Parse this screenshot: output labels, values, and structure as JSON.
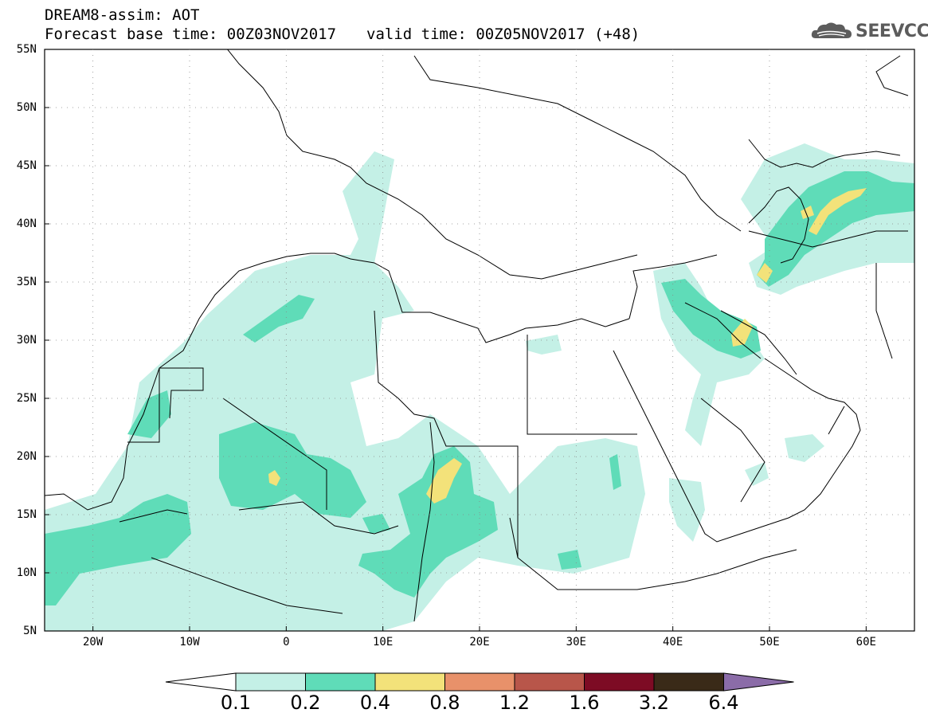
{
  "header": {
    "line1": "DREAM8-assim: AOT",
    "base_time": "Forecast base time: 00Z03NOV2017",
    "valid_time": "valid time: 00Z05NOV2017 (+48)"
  },
  "logo": {
    "text": "SEEVCCC",
    "icon": "cloud-logo-icon"
  },
  "map": {
    "lat_labels": [
      "55N",
      "50N",
      "45N",
      "40N",
      "35N",
      "30N",
      "25N",
      "20N",
      "15N",
      "10N",
      "5N"
    ],
    "lon_labels": [
      "20W",
      "10W",
      "0",
      "10E",
      "20E",
      "30E",
      "40E",
      "50E",
      "60E"
    ],
    "lon_range": [
      -25,
      65
    ],
    "lat_range": [
      5,
      55
    ]
  },
  "colorbar": {
    "labels": [
      "0.1",
      "0.2",
      "0.4",
      "0.8",
      "1.2",
      "1.6",
      "3.2",
      "6.4"
    ],
    "colors": [
      "#c4f0e6",
      "#5fdcb8",
      "#f3e27a",
      "#e8916a",
      "#b8564a",
      "#7d0b24",
      "#3a2a18"
    ],
    "under_color": "#ffffff",
    "over_color": "#8b6ca8"
  }
}
